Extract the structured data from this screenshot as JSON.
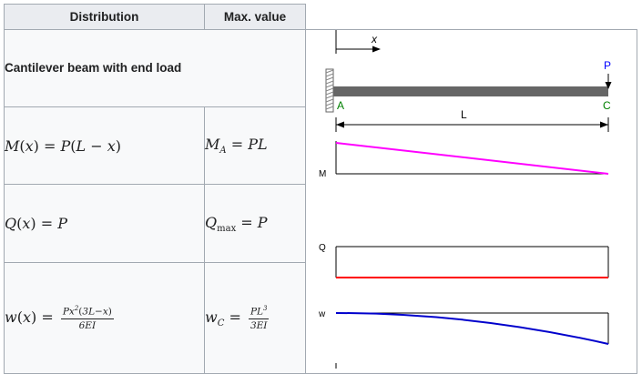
{
  "table": {
    "headers": [
      "Distribution",
      "Max. value"
    ],
    "case_title": "Cantilever beam with end load",
    "rows": [
      {
        "name": "moment",
        "distribution": "M(x) = P(L − x)",
        "max": "M_A = PL"
      },
      {
        "name": "shear",
        "distribution": "Q(x) = P",
        "max": "Q_max = P"
      },
      {
        "name": "deflection",
        "distribution": "w(x) = Px²(3L−x) / 6EI",
        "max": "w_C = PL³ / 3EI"
      }
    ]
  },
  "diagram": {
    "axis_label": "x",
    "load_label": "P",
    "point_a": "A",
    "point_c": "C",
    "length_label": "L",
    "moment_label": "M",
    "shear_label": "Q",
    "deflection_label": "w",
    "colors": {
      "beam": "#666666",
      "moment": "#ff00ff",
      "shear": "#ff0000",
      "deflection": "#0000cc",
      "load": "#0000ff",
      "points": "#008000",
      "border": "#a2a9b1",
      "header_bg": "#eaecf0",
      "cell_bg": "#f8f9fa"
    }
  }
}
